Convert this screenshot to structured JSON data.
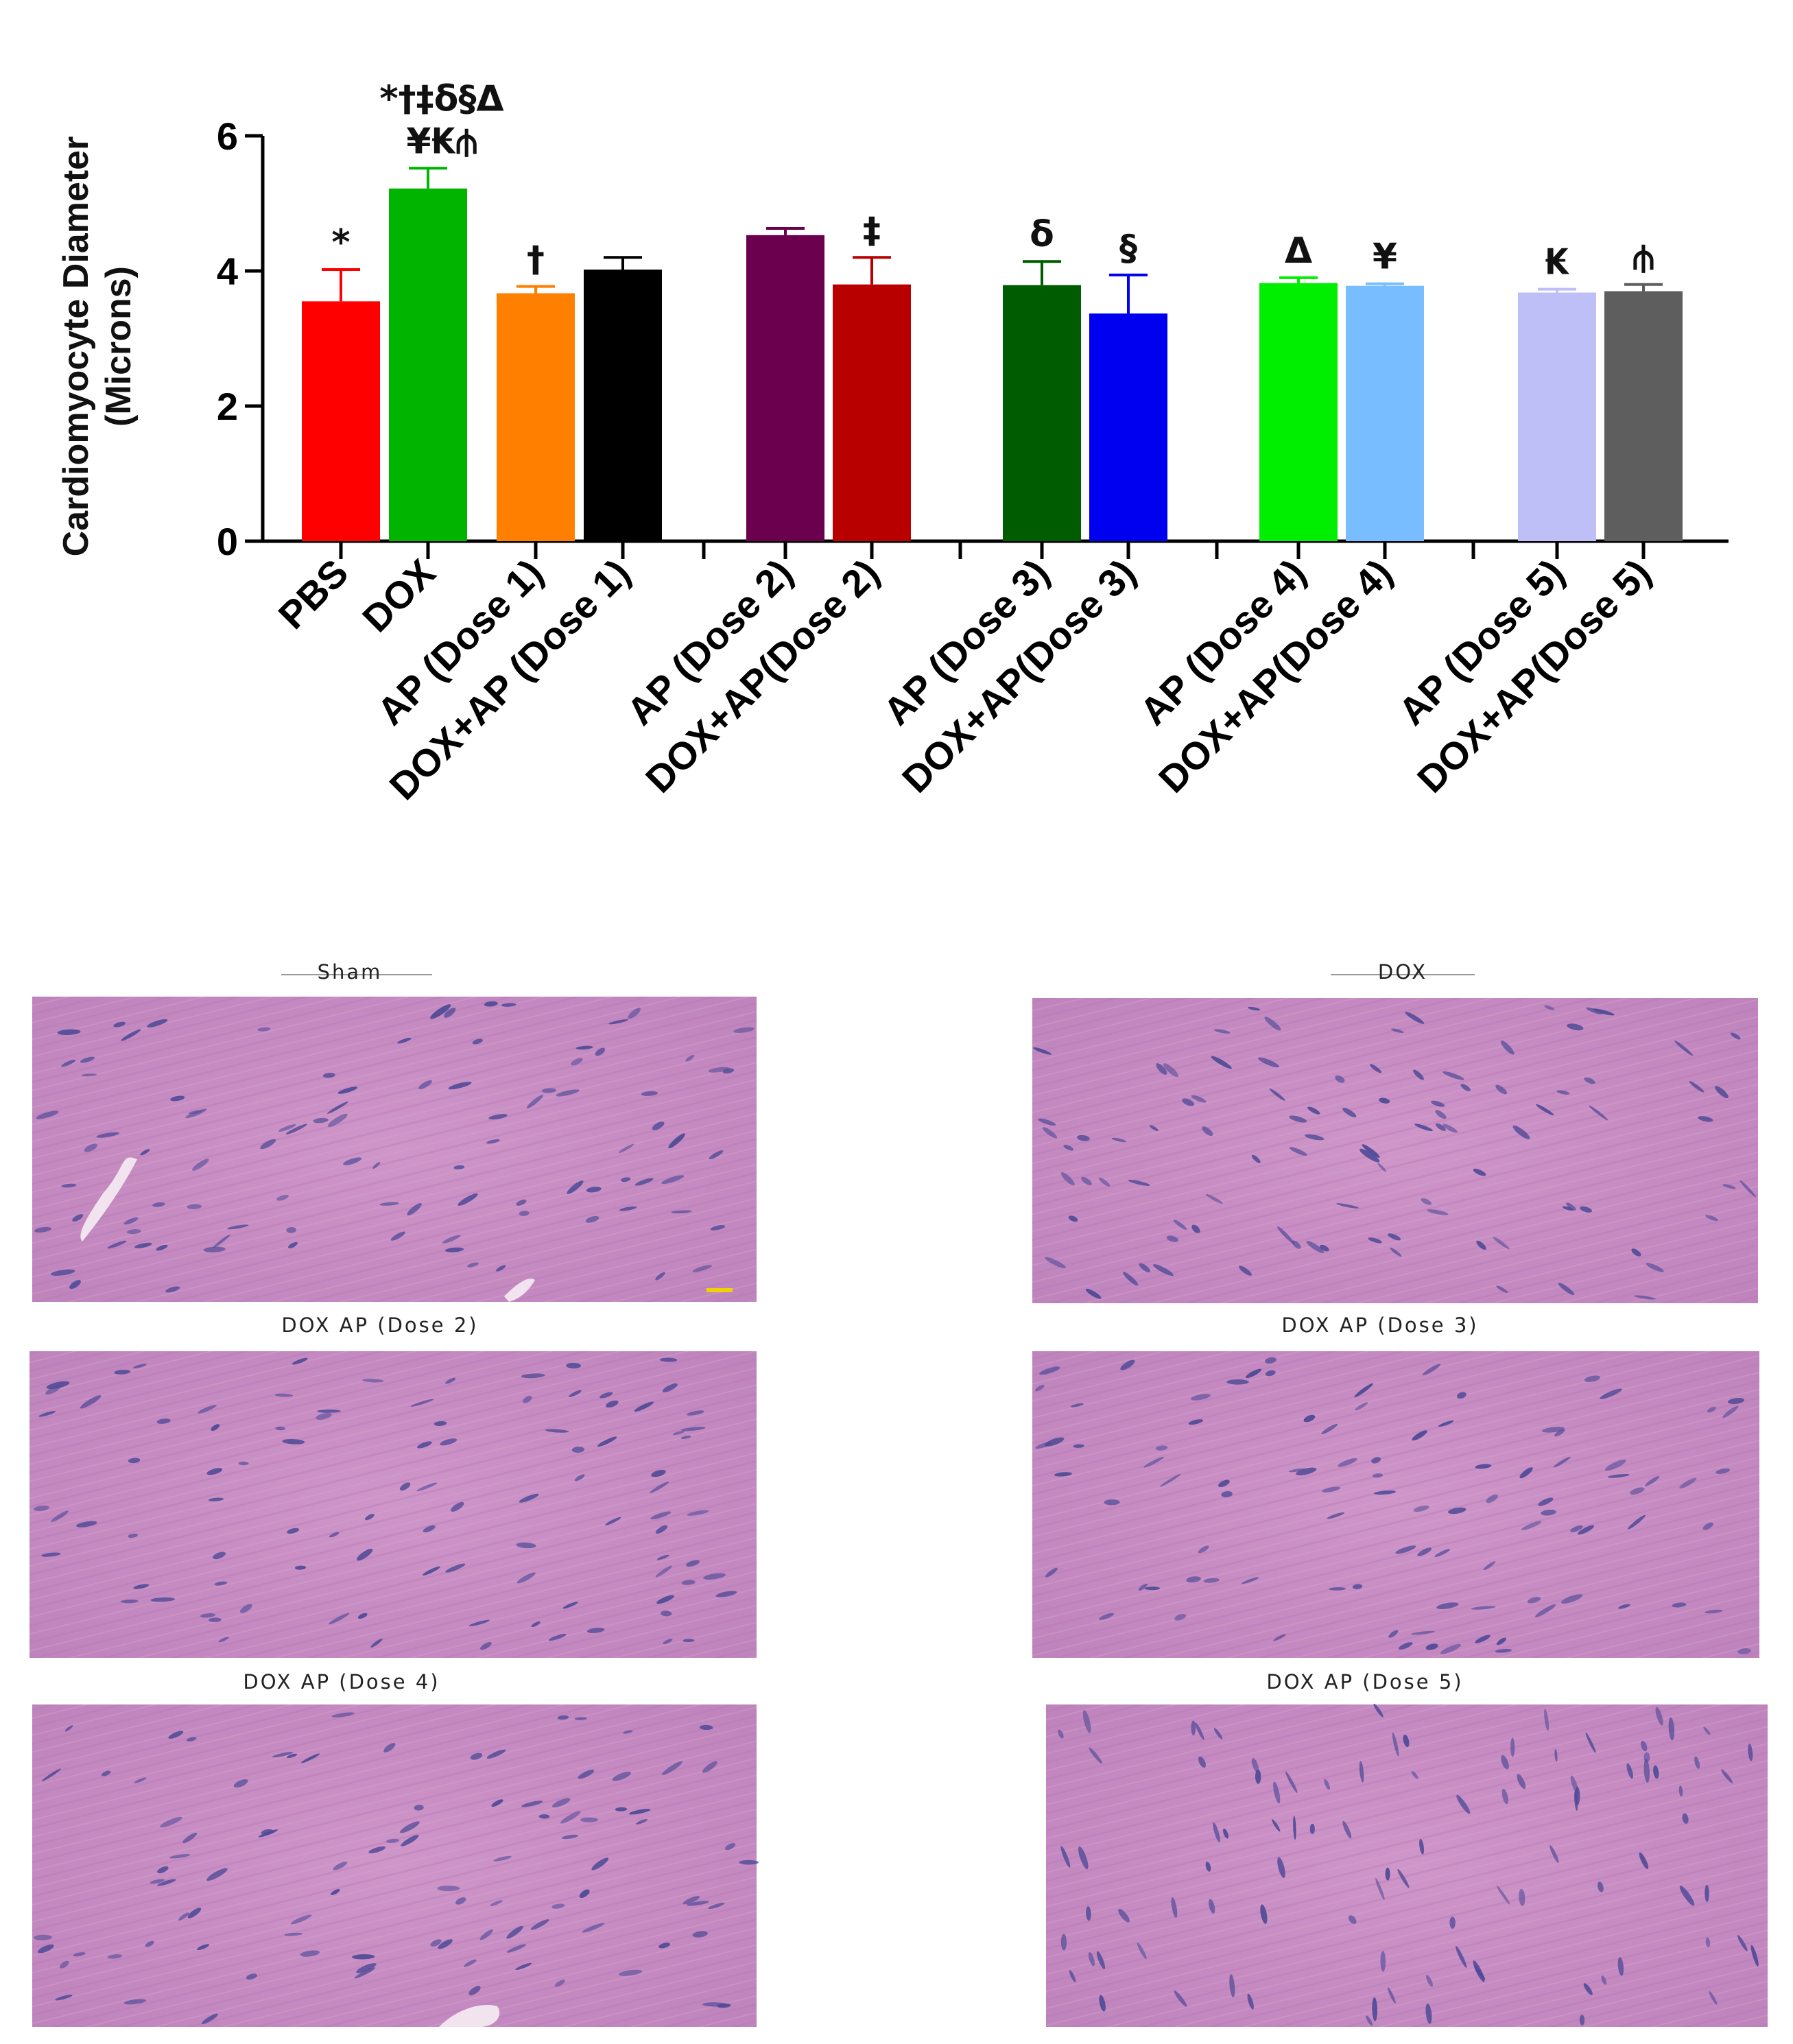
{
  "chart_data": {
    "type": "bar",
    "ylabel": [
      "Cardiomyocyte Diameter",
      "(Microns)"
    ],
    "xlabel": "",
    "ylim": [
      0,
      6
    ],
    "yticks": [
      0,
      2,
      4,
      6
    ],
    "grid": false,
    "legend": "none",
    "categories": [
      "PBS",
      "DOX",
      "AP (Dose 1)",
      "DOX+AP (Dose 1)",
      "AP (Dose 2)",
      "DOX+AP(Dose 2)",
      "AP (Dose 3)",
      "DOX+AP(Dose 3)",
      "AP (Dose 4)",
      "DOX+AP(Dose 4)",
      "AP (Dose 5)",
      "DOX+AP(Dose 5)"
    ],
    "values": [
      3.55,
      5.22,
      3.67,
      4.02,
      4.53,
      3.8,
      3.79,
      3.37,
      3.82,
      3.78,
      3.68,
      3.7
    ],
    "errors": [
      0.47,
      0.3,
      0.1,
      0.18,
      0.1,
      0.4,
      0.35,
      0.57,
      0.08,
      0.03,
      0.05,
      0.1
    ],
    "colors": [
      "#ff0000",
      "#00b400",
      "#ff7f00",
      "#000000",
      "#6b004e",
      "#b80000",
      "#005c00",
      "#0000f0",
      "#00ee00",
      "#77bdff",
      "#bfbff7",
      "#5e5e5e"
    ],
    "groups": [
      2,
      2,
      2,
      2,
      2
    ],
    "annotations": [
      {
        "bar": 0,
        "text": "*"
      },
      {
        "bar": 1,
        "text": "*†‡δ§Δ"
      },
      {
        "bar": 1,
        "text": "¥₭⫛"
      },
      {
        "bar": 2,
        "text": "†"
      },
      {
        "bar": 5,
        "text": "‡"
      },
      {
        "bar": 6,
        "text": "δ"
      },
      {
        "bar": 7,
        "text": "§"
      },
      {
        "bar": 8,
        "text": "Δ"
      },
      {
        "bar": 9,
        "text": "¥"
      },
      {
        "bar": 10,
        "text": "₭"
      },
      {
        "bar": 11,
        "text": "⫛"
      }
    ]
  },
  "micrographs": [
    {
      "title": "Sham"
    },
    {
      "title": "DOX"
    },
    {
      "title": "DOX AP (Dose 2)"
    },
    {
      "title": "DOX AP (Dose 3)"
    },
    {
      "title": "DOX AP (Dose 4)"
    },
    {
      "title": "DOX AP (Dose 5)"
    }
  ],
  "colors": {
    "tissue": "#c88ec4",
    "nucleus": "#4e4a96",
    "scale_bar": "#f0d200"
  }
}
